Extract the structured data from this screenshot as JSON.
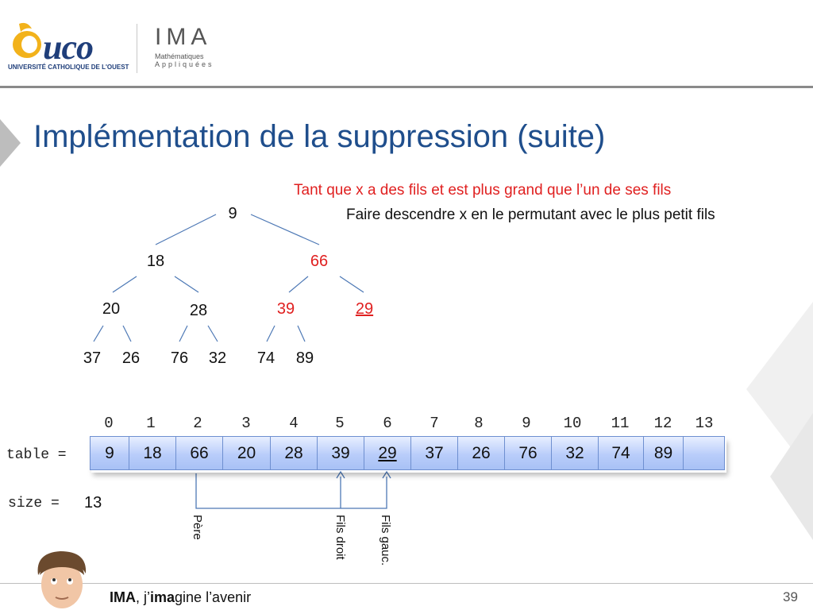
{
  "logo": {
    "uco_text": "uco",
    "uco_subtitle": "UNIVERSITÉ CATHOLIQUE DE L'OUEST",
    "ima_text": "IMA",
    "ima_sub1": "Mathématiques",
    "ima_sub2": "Appliquées"
  },
  "title": "Implémentation de la suppression (suite)",
  "instructions": {
    "line1": "Tant que x a des fils et est plus grand que l’un de ses fils",
    "line2": "Faire descendre x en le permutant avec le plus petit fils"
  },
  "tree": {
    "root": "9",
    "l1_left": "18",
    "l1_right": "66",
    "l2_a": "20",
    "l2_b": "28",
    "l2_c": "39",
    "l2_d": "29",
    "l3_a": "37",
    "l3_b": "26",
    "l3_c": "76",
    "l3_d": "32",
    "l3_e": "74",
    "l3_f": "89"
  },
  "array": {
    "label": "table =",
    "indices": [
      "0",
      "1",
      "2",
      "3",
      "4",
      "5",
      "6",
      "7",
      "8",
      "9",
      "10",
      "11",
      "12",
      "13"
    ],
    "values": [
      "9",
      "18",
      "66",
      "20",
      "28",
      "39",
      "29",
      "37",
      "26",
      "76",
      "32",
      "74",
      "89",
      ""
    ]
  },
  "size": {
    "label": "size =",
    "value": "13"
  },
  "arrows": {
    "pere": "Père",
    "fils_droit": "Fils droit",
    "fils_gauc": "Fils gauc."
  },
  "footer": {
    "slogan_bold": "IMA",
    "slogan_mid": ", j’",
    "slogan_bold2": "ima",
    "slogan_end": "gine l’avenir",
    "page": "39"
  },
  "colors": {
    "title": "#1f4e8c",
    "highlight": "#e02020",
    "cell_border": "#6e8fd0"
  }
}
